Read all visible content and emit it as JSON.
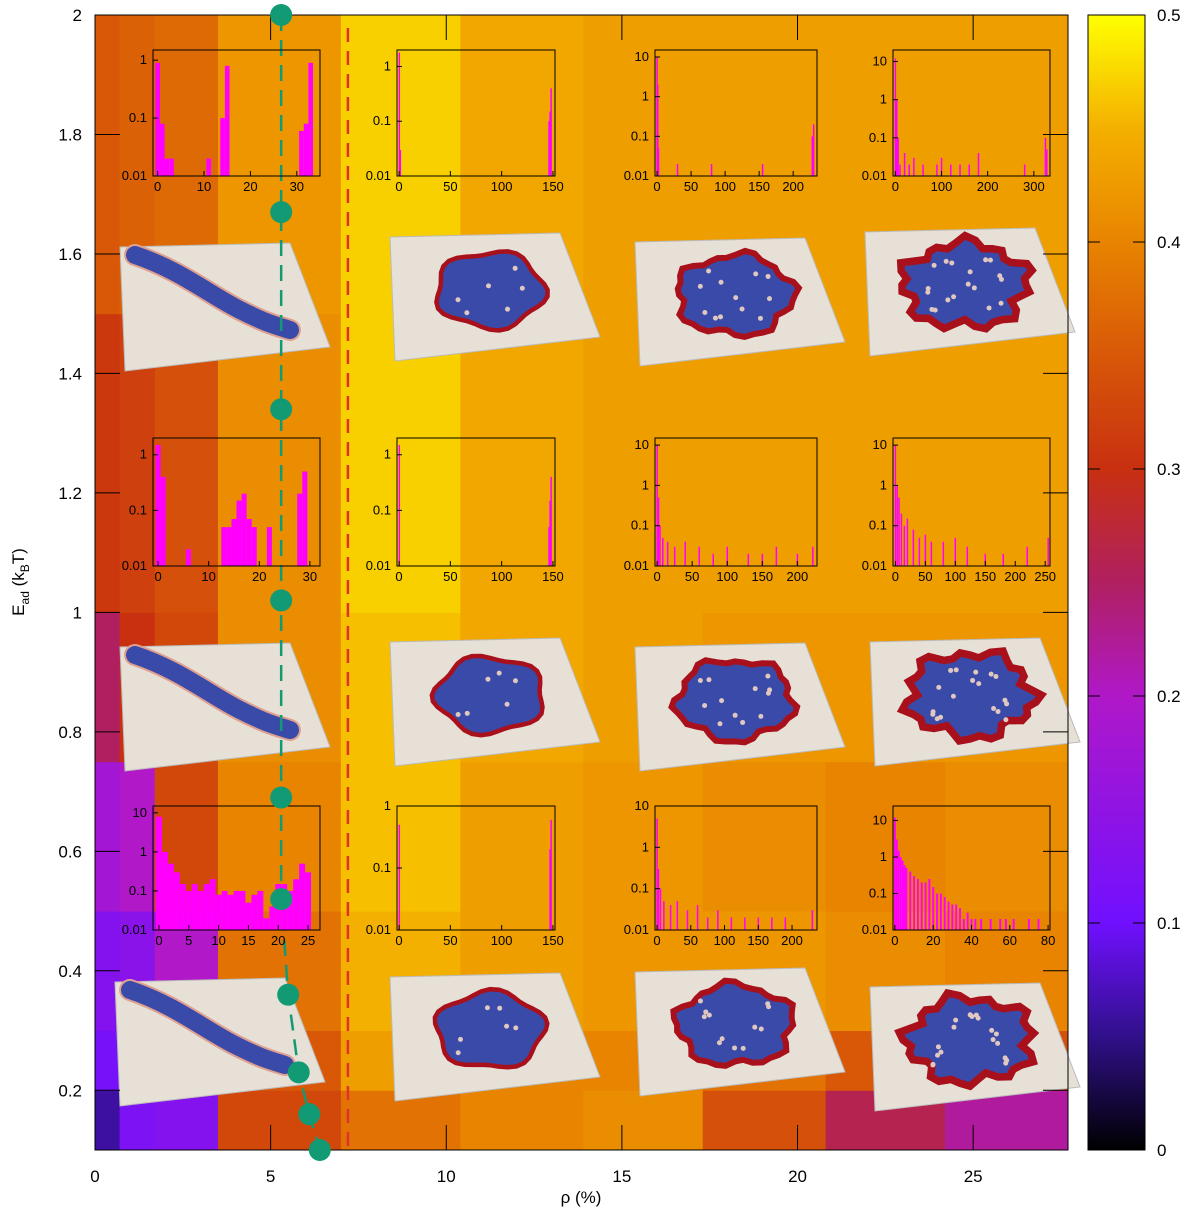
{
  "chart_data": {
    "type": "heatmap",
    "xlabel": "ρ (%)",
    "ylabel_parts": [
      {
        "text": "E"
      },
      {
        "text": "ad",
        "sub": true
      },
      {
        "text": " (k"
      },
      {
        "text": "B",
        "sub": true
      },
      {
        "text": "T)"
      }
    ],
    "xlim": [
      0,
      27.7
    ],
    "ylim": [
      0.1,
      2
    ],
    "xticks": [
      0,
      5,
      10,
      15,
      20,
      25
    ],
    "yticks": [
      0.2,
      0.4,
      0.6,
      0.8,
      1,
      1.2,
      1.4,
      1.6,
      1.8,
      2
    ],
    "x_edges": [
      0,
      0.7,
      1.7,
      3.5,
      7.0,
      10.4,
      13.9,
      17.3,
      20.8,
      24.2,
      27.7
    ],
    "y_edges": [
      0.1,
      0.2,
      0.3,
      0.5,
      0.75,
      1.0,
      1.5,
      2.0
    ],
    "values": [
      [
        0.06,
        0.12,
        0.13,
        0.33,
        0.38,
        0.4,
        0.41,
        0.34,
        0.26,
        0.22
      ],
      [
        0.11,
        0.12,
        0.14,
        0.35,
        0.43,
        0.4,
        0.4,
        0.38,
        0.35,
        0.34
      ],
      [
        0.13,
        0.14,
        0.2,
        0.38,
        0.45,
        0.43,
        0.42,
        0.42,
        0.41,
        0.4
      ],
      [
        0.18,
        0.2,
        0.33,
        0.4,
        0.46,
        0.43,
        0.42,
        0.41,
        0.4,
        0.41
      ],
      [
        0.25,
        0.3,
        0.33,
        0.41,
        0.46,
        0.44,
        0.43,
        0.42,
        0.42,
        0.42
      ],
      [
        0.31,
        0.32,
        0.34,
        0.41,
        0.47,
        0.44,
        0.43,
        0.43,
        0.43,
        0.43
      ],
      [
        0.35,
        0.36,
        0.37,
        0.42,
        0.47,
        0.44,
        0.43,
        0.43,
        0.43,
        0.43
      ]
    ],
    "clim": [
      0,
      0.5
    ],
    "cticks": [
      0,
      0.1,
      0.2,
      0.3,
      0.4,
      0.5
    ],
    "colorscale": [
      [
        0,
        "#000000"
      ],
      [
        0.05,
        "#30108a"
      ],
      [
        0.1,
        "#7010ff"
      ],
      [
        0.2,
        "#b018c8"
      ],
      [
        0.25,
        "#b02060"
      ],
      [
        0.3,
        "#c83010"
      ],
      [
        0.35,
        "#d85808"
      ],
      [
        0.4,
        "#e88400"
      ],
      [
        0.45,
        "#f4b000"
      ],
      [
        0.5,
        "#ffff00"
      ]
    ],
    "boundary": {
      "color": "#129a74",
      "x": [
        5.3,
        5.3,
        5.3,
        5.3,
        5.3,
        5.3,
        5.5,
        5.8,
        6.1,
        6.4
      ],
      "y": [
        2.0,
        1.67,
        1.34,
        1.02,
        0.69,
        0.52,
        0.36,
        0.23,
        0.16,
        0.1
      ]
    },
    "threshold": {
      "x": 7.2,
      "color": "#e03030"
    },
    "insets": [
      {
        "type": "histogram",
        "color": "#ff00ff",
        "bar_width": 1,
        "xlim": [
          -1,
          35
        ],
        "xticks": [
          0,
          10,
          20,
          30
        ],
        "ylim": [
          0.01,
          1.5
        ],
        "yticks": [
          0.01,
          0.1,
          1
        ],
        "x": [
          0,
          1,
          2,
          3,
          11,
          14,
          15,
          31,
          32,
          33
        ],
        "values": [
          0.9,
          0.08,
          0.02,
          0.02,
          0.02,
          0.1,
          0.8,
          0.06,
          0.08,
          0.9
        ]
      },
      {
        "type": "histogram",
        "color": "#ff00ff",
        "bar_width": 1,
        "xlim": [
          -2,
          152
        ],
        "xticks": [
          0,
          50,
          100,
          150
        ],
        "ylim": [
          0.01,
          2
        ],
        "yticks": [
          0.01,
          0.1,
          1
        ],
        "x": [
          0,
          1,
          146,
          147,
          148
        ],
        "values": [
          1.8,
          0.03,
          0.1,
          0.15,
          0.4
        ]
      },
      {
        "type": "histogram",
        "color": "#ff00ff",
        "bar_width": 2,
        "xlim": [
          -3,
          235
        ],
        "xticks": [
          0,
          50,
          100,
          150,
          200
        ],
        "ylim": [
          0.01,
          15
        ],
        "yticks": [
          0.01,
          0.1,
          1,
          10
        ],
        "x": [
          0,
          1,
          2,
          30,
          80,
          155,
          228,
          230
        ],
        "values": [
          10,
          2,
          0.05,
          0.02,
          0.02,
          0.02,
          0.1,
          0.2
        ]
      },
      {
        "type": "histogram",
        "color": "#ff00ff",
        "bar_width": 3,
        "xlim": [
          -5,
          335
        ],
        "xticks": [
          0,
          100,
          200,
          300
        ],
        "ylim": [
          0.01,
          20
        ],
        "yticks": [
          0.01,
          0.1,
          1,
          10
        ],
        "x": [
          0,
          3,
          6,
          10,
          20,
          30,
          40,
          60,
          90,
          100,
          120,
          140,
          160,
          180,
          280,
          325,
          328
        ],
        "values": [
          12,
          1,
          0.1,
          0.02,
          0.04,
          0.02,
          0.03,
          0.02,
          0.02,
          0.03,
          0.02,
          0.02,
          0.02,
          0.04,
          0.02,
          0.1,
          0.05
        ]
      },
      {
        "type": "histogram",
        "color": "#ff00ff",
        "bar_width": 1,
        "xlim": [
          -1,
          32
        ],
        "xticks": [
          0,
          10,
          20,
          30
        ],
        "ylim": [
          0.01,
          2
        ],
        "yticks": [
          0.01,
          0.1,
          1
        ],
        "x": [
          0,
          1,
          6,
          13,
          14,
          15,
          16,
          17,
          18,
          19,
          22,
          28,
          29
        ],
        "values": [
          1.5,
          0.4,
          0.02,
          0.05,
          0.05,
          0.07,
          0.15,
          0.2,
          0.07,
          0.05,
          0.05,
          0.2,
          0.5
        ]
      },
      {
        "type": "histogram",
        "color": "#ff00ff",
        "bar_width": 1,
        "xlim": [
          -2,
          152
        ],
        "xticks": [
          0,
          50,
          100,
          150
        ],
        "ylim": [
          0.01,
          2
        ],
        "yticks": [
          0.01,
          0.1,
          1
        ],
        "x": [
          0,
          146,
          147,
          148
        ],
        "values": [
          1.5,
          0.05,
          0.15,
          0.4
        ]
      },
      {
        "type": "histogram",
        "color": "#ff00ff",
        "bar_width": 2,
        "xlim": [
          -3,
          228
        ],
        "xticks": [
          0,
          50,
          100,
          150,
          200
        ],
        "ylim": [
          0.01,
          15
        ],
        "yticks": [
          0.01,
          0.1,
          1,
          10
        ],
        "x": [
          0,
          2,
          4,
          8,
          15,
          25,
          40,
          60,
          80,
          100,
          130,
          150,
          170,
          200,
          222
        ],
        "values": [
          10,
          0.5,
          0.1,
          0.05,
          0.04,
          0.03,
          0.04,
          0.03,
          0.02,
          0.03,
          0.02,
          0.02,
          0.03,
          0.02,
          0.03
        ]
      },
      {
        "type": "histogram",
        "color": "#ff00ff",
        "bar_width": 2.5,
        "xlim": [
          -4,
          258
        ],
        "xticks": [
          0,
          50,
          100,
          150,
          200,
          250
        ],
        "ylim": [
          0.01,
          15
        ],
        "yticks": [
          0.01,
          0.1,
          1,
          10
        ],
        "x": [
          0,
          3,
          6,
          10,
          15,
          20,
          30,
          40,
          50,
          60,
          80,
          100,
          120,
          150,
          180,
          220,
          255
        ],
        "values": [
          10,
          1,
          0.5,
          0.2,
          0.1,
          0.15,
          0.08,
          0.05,
          0.06,
          0.04,
          0.04,
          0.05,
          0.03,
          0.02,
          0.02,
          0.03,
          0.05
        ]
      },
      {
        "type": "histogram",
        "color": "#ff00ff",
        "bar_width": 1,
        "xlim": [
          -1,
          27
        ],
        "xticks": [
          0,
          5,
          10,
          15,
          20,
          25
        ],
        "ylim": [
          0.01,
          15
        ],
        "yticks": [
          0.01,
          0.1,
          1,
          10
        ],
        "x": [
          0,
          1,
          2,
          3,
          4,
          5,
          6,
          7,
          8,
          9,
          10,
          11,
          12,
          13,
          14,
          15,
          16,
          17,
          18,
          19,
          20,
          21,
          22,
          23,
          24,
          25
        ],
        "values": [
          8,
          1,
          0.5,
          0.3,
          0.15,
          0.1,
          0.15,
          0.1,
          0.15,
          0.2,
          0.08,
          0.1,
          0.08,
          0.1,
          0.1,
          0.05,
          0.08,
          0.1,
          0.02,
          0.04,
          0.15,
          0.15,
          0.1,
          0.2,
          0.5,
          0.3
        ]
      },
      {
        "type": "histogram",
        "color": "#ff00ff",
        "bar_width": 1,
        "xlim": [
          -2,
          152
        ],
        "xticks": [
          0,
          50,
          100,
          150
        ],
        "ylim": [
          0.01,
          1
        ],
        "yticks": [
          0.01,
          0.1,
          1
        ],
        "x": [
          0,
          147,
          148
        ],
        "values": [
          0.5,
          0.2,
          0.6
        ]
      },
      {
        "type": "histogram",
        "color": "#ff00ff",
        "bar_width": 2,
        "xlim": [
          -3,
          237
        ],
        "xticks": [
          0,
          50,
          100,
          150,
          200
        ],
        "ylim": [
          0.01,
          10
        ],
        "yticks": [
          0.01,
          0.1,
          1,
          10
        ],
        "x": [
          0,
          2,
          5,
          10,
          20,
          30,
          45,
          60,
          75,
          90,
          110,
          130,
          150,
          170,
          190,
          230
        ],
        "values": [
          5,
          0.3,
          0.1,
          0.05,
          0.04,
          0.05,
          0.03,
          0.04,
          0.02,
          0.03,
          0.02,
          0.02,
          0.02,
          0.02,
          0.02,
          0.03
        ]
      },
      {
        "type": "histogram",
        "color": "#ff00ff",
        "bar_width": 1,
        "xlim": [
          -1,
          81
        ],
        "xticks": [
          0,
          20,
          40,
          60,
          80
        ],
        "ylim": [
          0.01,
          25
        ],
        "yticks": [
          0.01,
          0.1,
          1,
          10
        ],
        "x": [
          0,
          1,
          2,
          3,
          4,
          5,
          6,
          8,
          10,
          12,
          14,
          16,
          18,
          20,
          22,
          24,
          26,
          28,
          30,
          32,
          34,
          36,
          38,
          40,
          42,
          45,
          50,
          55,
          58,
          62,
          70,
          75
        ],
        "values": [
          12,
          3,
          1.5,
          1,
          0.8,
          0.6,
          0.5,
          0.4,
          0.3,
          0.25,
          0.2,
          0.2,
          0.25,
          0.15,
          0.1,
          0.1,
          0.08,
          0.06,
          0.05,
          0.05,
          0.04,
          0.02,
          0.03,
          0.02,
          0.02,
          0.02,
          0.02,
          0.02,
          0.02,
          0.02,
          0.02,
          0.02
        ]
      }
    ]
  }
}
